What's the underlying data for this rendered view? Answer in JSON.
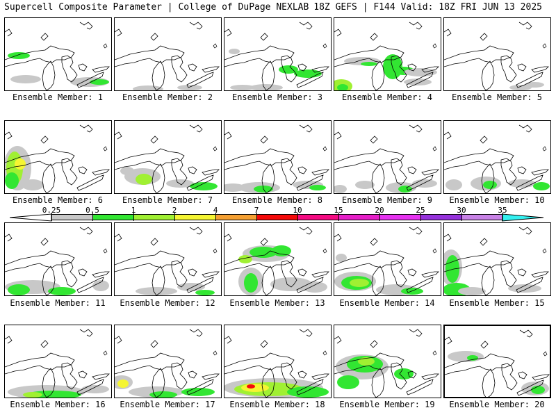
{
  "header": {
    "title": "Supercell Composite Parameter | College of DuPage NEXLAB",
    "run_info": "18Z GEFS | F144 Valid: 18Z FRI JUN 13 2025"
  },
  "colorbar": {
    "ticks": [
      "0.25",
      "0.5",
      "1",
      "2",
      "4",
      "7",
      "10",
      "15",
      "20",
      "25",
      "30",
      "35"
    ],
    "colors": [
      "#c8c8c8",
      "#32e632",
      "#a0f032",
      "#f5f532",
      "#f5a032",
      "#f50a0a",
      "#f50a82",
      "#e61ec8",
      "#e632f0",
      "#9632dc",
      "#c882e6",
      "#32f0f0"
    ]
  },
  "members": [
    {
      "label": "Ensemble Member: 1"
    },
    {
      "label": "Ensemble Member: 2"
    },
    {
      "label": "Ensemble Member: 3"
    },
    {
      "label": "Ensemble Member: 4"
    },
    {
      "label": "Ensemble Member: 5"
    },
    {
      "label": "Ensemble Member: 6"
    },
    {
      "label": "Ensemble Member: 7"
    },
    {
      "label": "Ensemble Member: 8"
    },
    {
      "label": "Ensemble Member: 9"
    },
    {
      "label": "Ensemble Member: 10"
    },
    {
      "label": "Ensemble Member: 11"
    },
    {
      "label": "Ensemble Member: 12"
    },
    {
      "label": "Ensemble Member: 13"
    },
    {
      "label": "Ensemble Member: 14"
    },
    {
      "label": "Ensemble Member: 15"
    },
    {
      "label": "Ensemble Member: 16"
    },
    {
      "label": "Ensemble Member: 17"
    },
    {
      "label": "Ensemble Member: 18"
    },
    {
      "label": "Ensemble Member: 19"
    },
    {
      "label": "Ensemble Member: 20"
    }
  ]
}
